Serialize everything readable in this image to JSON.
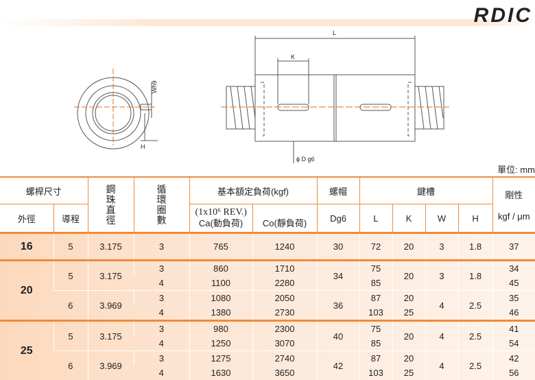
{
  "title": "RDIC",
  "diagram": {
    "L": "L",
    "K": "K",
    "W": "Wh9",
    "H": "H",
    "D": "ϕ D g6"
  },
  "unit": "單位: mm",
  "header": {
    "screw_size": "螺桿尺寸",
    "od": "外徑",
    "lead": "導程",
    "ball": "鋼\n珠\n直\n徑",
    "turns": "循\n環\n圈\n數",
    "load": "基本額定負荷(kgf)",
    "rev": "(1x10⁶ REV.)",
    "ca": "Ca(動負荷)",
    "co": "Co(靜負荷)",
    "nut": "螺帽",
    "dg6": "Dg6",
    "key": "鍵槽",
    "L": "L",
    "K": "K",
    "W": "W",
    "H": "H",
    "stiff": "剛性",
    "stiff_unit": "kgf / μm"
  },
  "groups": [
    {
      "od": "16",
      "leads": [
        {
          "lead": "5",
          "ball": "3.175",
          "dg6": "30",
          "k": "20",
          "w": "3",
          "h": "1.8",
          "lines": [
            {
              "turns": "3",
              "ca": "765",
              "co": "1240",
              "l": "72",
              "stiff": "37"
            }
          ]
        }
      ]
    },
    {
      "od": "20",
      "leads": [
        {
          "lead": "5",
          "ball": "3.175",
          "dg6": "34",
          "k": "20",
          "w": "3",
          "h": "1.8",
          "lines": [
            {
              "turns": "3",
              "ca": "860",
              "co": "1710",
              "l": "75",
              "stiff": "34"
            },
            {
              "turns": "4",
              "ca": "1100",
              "co": "2280",
              "l": "85",
              "stiff": "45"
            }
          ]
        },
        {
          "lead": "6",
          "ball": "3.969",
          "dg6": "36",
          "w": "4",
          "h": "2.5",
          "lines": [
            {
              "turns": "3",
              "ca": "1080",
              "co": "2050",
              "l": "87",
              "k": "20",
              "stiff": "35"
            },
            {
              "turns": "4",
              "ca": "1380",
              "co": "2730",
              "l": "103",
              "k": "25",
              "stiff": "46"
            }
          ]
        }
      ]
    },
    {
      "od": "25",
      "leads": [
        {
          "lead": "5",
          "ball": "3.175",
          "dg6": "40",
          "k": "20",
          "w": "4",
          "h": "2.5",
          "lines": [
            {
              "turns": "3",
              "ca": "980",
              "co": "2300",
              "l": "75",
              "stiff": "41"
            },
            {
              "turns": "4",
              "ca": "1250",
              "co": "3070",
              "l": "85",
              "stiff": "54"
            }
          ]
        },
        {
          "lead": "6",
          "ball": "3.969",
          "dg6": "42",
          "w": "4",
          "h": "2.5",
          "lines": [
            {
              "turns": "3",
              "ca": "1275",
              "co": "2740",
              "l": "87",
              "k": "20",
              "stiff": "42"
            },
            {
              "turns": "4",
              "ca": "1630",
              "co": "3650",
              "l": "103",
              "k": "25",
              "stiff": "56"
            }
          ]
        }
      ]
    }
  ]
}
